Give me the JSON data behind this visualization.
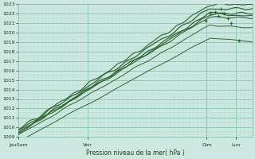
{
  "xlabel": "Pression niveau de la mer( hPa )",
  "ylim": [
    1009,
    1023
  ],
  "yticks": [
    1009,
    1010,
    1011,
    1012,
    1013,
    1014,
    1015,
    1016,
    1017,
    1018,
    1019,
    1020,
    1021,
    1022,
    1023
  ],
  "xtick_labels": [
    "JeuSam",
    "Ven",
    "Dim",
    "Lun"
  ],
  "xtick_positions": [
    0.0,
    0.295,
    0.805,
    0.93
  ],
  "bg_color": "#cce8e0",
  "grid_major_color": "#88c4b0",
  "grid_minor_color": "#aad8cc",
  "line_color": "#2a5e2a",
  "figsize": [
    3.2,
    2.0
  ],
  "dpi": 100
}
